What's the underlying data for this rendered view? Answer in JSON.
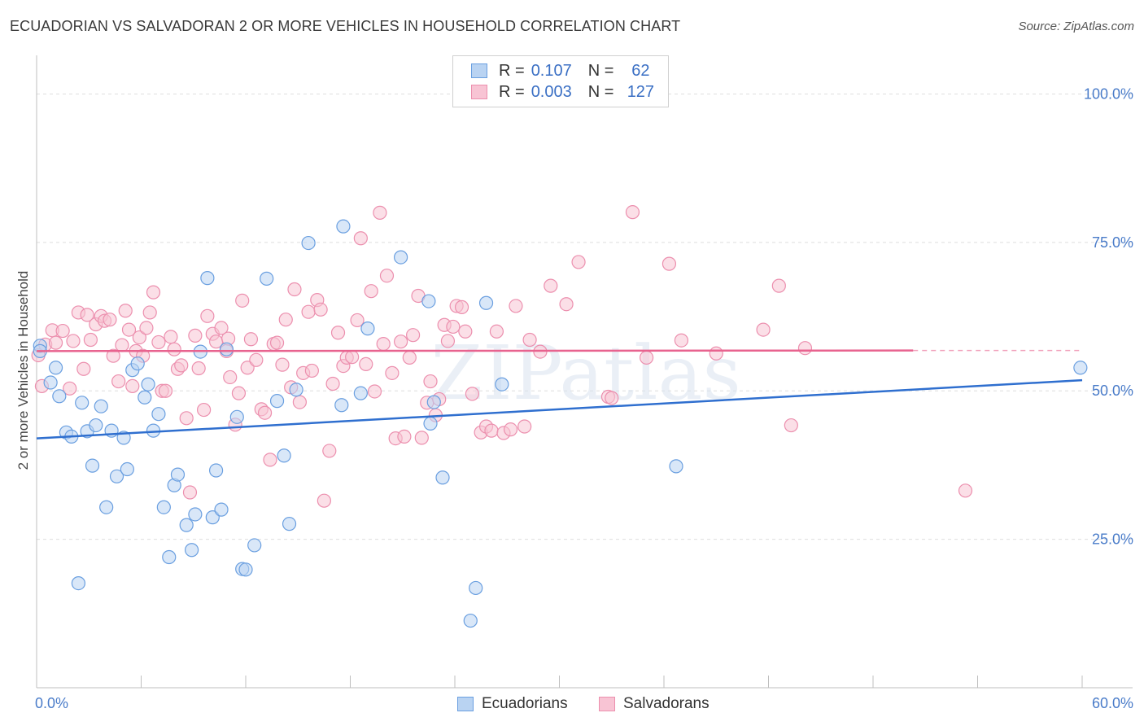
{
  "title": "ECUADORIAN VS SALVADORAN 2 OR MORE VEHICLES IN HOUSEHOLD CORRELATION CHART",
  "source": "Source: ZipAtlas.com",
  "watermark": "ZIPatlas",
  "legend": {
    "rows": [
      {
        "r_label": "R =",
        "r_value": "0.107",
        "n_label": "N =",
        "n_value": "62"
      },
      {
        "r_label": "R =",
        "r_value": "0.003",
        "n_label": "N =",
        "n_value": "127"
      }
    ]
  },
  "bottom_legend": {
    "series1": "Ecuadorians",
    "series2": "Salvadorans"
  },
  "colors": {
    "ecuadorian_fill": "#b9d3f2",
    "ecuadorian_stroke": "#6a9fe0",
    "ecuadorian_line": "#2f6fcf",
    "salvadoran_fill": "#f8c4d4",
    "salvadoran_stroke": "#ec8fae",
    "salvadoran_line": "#e8638f",
    "tick": "#4a7cc9",
    "grid": "#dedede"
  },
  "chart_data": {
    "type": "scatter",
    "title": "ECUADORIAN VS SALVADORAN 2 OR MORE VEHICLES IN HOUSEHOLD CORRELATION CHART",
    "xlabel": "",
    "ylabel": "2 or more Vehicles in Household",
    "xlim": [
      0,
      60
    ],
    "ylim": [
      0,
      105
    ],
    "x_tick_labels": [
      "0.0%",
      "60.0%"
    ],
    "y_ticks": [
      25,
      50,
      75,
      100
    ],
    "y_tick_labels": [
      "25.0%",
      "50.0%",
      "75.0%",
      "100.0%"
    ],
    "series": [
      {
        "name": "Ecuadorians",
        "trend": {
          "x": [
            0,
            60
          ],
          "y": [
            42.0,
            51.8
          ]
        },
        "points": [
          [
            0.2,
            57.6
          ],
          [
            0.2,
            56.7
          ],
          [
            0.8,
            51.4
          ],
          [
            1.1,
            53.9
          ],
          [
            1.3,
            49.1
          ],
          [
            1.7,
            43.0
          ],
          [
            2.0,
            42.3
          ],
          [
            2.4,
            17.6
          ],
          [
            2.6,
            48.0
          ],
          [
            2.9,
            43.2
          ],
          [
            3.2,
            37.4
          ],
          [
            3.4,
            44.2
          ],
          [
            3.7,
            47.4
          ],
          [
            4.0,
            30.4
          ],
          [
            4.3,
            43.3
          ],
          [
            4.6,
            35.6
          ],
          [
            5.0,
            42.1
          ],
          [
            5.2,
            36.8
          ],
          [
            5.5,
            53.5
          ],
          [
            5.8,
            54.6
          ],
          [
            6.2,
            48.9
          ],
          [
            6.4,
            51.1
          ],
          [
            6.7,
            43.3
          ],
          [
            7.0,
            46.1
          ],
          [
            7.3,
            30.4
          ],
          [
            7.6,
            22.0
          ],
          [
            7.9,
            34.1
          ],
          [
            8.1,
            35.9
          ],
          [
            8.6,
            27.4
          ],
          [
            8.9,
            23.2
          ],
          [
            9.1,
            29.2
          ],
          [
            9.4,
            56.6
          ],
          [
            9.8,
            69.0
          ],
          [
            10.1,
            28.7
          ],
          [
            10.3,
            36.6
          ],
          [
            10.6,
            30.0
          ],
          [
            10.9,
            57.0
          ],
          [
            11.5,
            45.6
          ],
          [
            11.8,
            20.0
          ],
          [
            12.0,
            19.9
          ],
          [
            12.5,
            24.0
          ],
          [
            13.2,
            68.9
          ],
          [
            13.8,
            48.3
          ],
          [
            14.2,
            39.1
          ],
          [
            14.5,
            27.6
          ],
          [
            14.9,
            50.2
          ],
          [
            15.6,
            74.9
          ],
          [
            17.5,
            47.6
          ],
          [
            17.6,
            77.7
          ],
          [
            18.6,
            49.6
          ],
          [
            19.0,
            60.5
          ],
          [
            20.9,
            72.5
          ],
          [
            22.5,
            65.1
          ],
          [
            22.6,
            44.5
          ],
          [
            22.8,
            48.1
          ],
          [
            23.3,
            35.4
          ],
          [
            25.2,
            16.8
          ],
          [
            24.9,
            11.3
          ],
          [
            25.8,
            64.8
          ],
          [
            26.7,
            51.1
          ],
          [
            36.7,
            37.3
          ],
          [
            59.9,
            53.9
          ]
        ]
      },
      {
        "name": "Salvadorans",
        "trend": {
          "x": [
            0,
            50.3
          ],
          "y": [
            56.7,
            56.8
          ],
          "dashed_to_x": 60
        },
        "points": [
          [
            0.1,
            56.0
          ],
          [
            0.3,
            50.8
          ],
          [
            0.5,
            57.8
          ],
          [
            0.9,
            60.2
          ],
          [
            1.1,
            58.1
          ],
          [
            1.5,
            60.1
          ],
          [
            1.9,
            50.4
          ],
          [
            2.1,
            58.4
          ],
          [
            2.4,
            63.2
          ],
          [
            2.7,
            53.7
          ],
          [
            2.9,
            62.8
          ],
          [
            3.1,
            58.6
          ],
          [
            3.4,
            61.2
          ],
          [
            3.7,
            62.6
          ],
          [
            3.9,
            61.8
          ],
          [
            4.2,
            62.0
          ],
          [
            4.4,
            55.9
          ],
          [
            4.7,
            51.6
          ],
          [
            4.9,
            57.7
          ],
          [
            5.1,
            63.5
          ],
          [
            5.3,
            60.3
          ],
          [
            5.5,
            50.8
          ],
          [
            5.7,
            56.7
          ],
          [
            5.9,
            59.0
          ],
          [
            6.1,
            55.9
          ],
          [
            6.3,
            60.6
          ],
          [
            6.5,
            63.2
          ],
          [
            6.7,
            66.6
          ],
          [
            7.0,
            58.2
          ],
          [
            7.2,
            50.0
          ],
          [
            7.4,
            50.0
          ],
          [
            7.7,
            59.1
          ],
          [
            7.9,
            57.0
          ],
          [
            8.1,
            53.7
          ],
          [
            8.3,
            54.3
          ],
          [
            8.6,
            45.4
          ],
          [
            8.8,
            32.9
          ],
          [
            9.1,
            59.3
          ],
          [
            9.3,
            53.8
          ],
          [
            9.6,
            46.8
          ],
          [
            9.8,
            62.6
          ],
          [
            10.1,
            59.6
          ],
          [
            10.3,
            58.3
          ],
          [
            10.6,
            60.6
          ],
          [
            10.9,
            56.7
          ],
          [
            11.1,
            52.3
          ],
          [
            11.4,
            44.3
          ],
          [
            11.6,
            49.6
          ],
          [
            11.8,
            65.2
          ],
          [
            12.1,
            53.9
          ],
          [
            12.3,
            58.7
          ],
          [
            12.6,
            55.2
          ],
          [
            12.9,
            46.9
          ],
          [
            13.1,
            46.3
          ],
          [
            13.4,
            38.4
          ],
          [
            13.6,
            57.9
          ],
          [
            13.8,
            58.1
          ],
          [
            14.1,
            54.4
          ],
          [
            14.3,
            62.0
          ],
          [
            14.6,
            50.6
          ],
          [
            14.8,
            67.1
          ],
          [
            15.1,
            48.1
          ],
          [
            15.3,
            53.0
          ],
          [
            15.6,
            63.3
          ],
          [
            15.8,
            53.4
          ],
          [
            16.1,
            65.3
          ],
          [
            16.3,
            63.7
          ],
          [
            16.5,
            31.5
          ],
          [
            16.8,
            39.9
          ],
          [
            17.0,
            51.2
          ],
          [
            17.3,
            59.8
          ],
          [
            17.6,
            54.2
          ],
          [
            17.8,
            55.6
          ],
          [
            18.1,
            55.7
          ],
          [
            18.4,
            61.9
          ],
          [
            18.6,
            75.7
          ],
          [
            18.9,
            54.5
          ],
          [
            19.2,
            66.8
          ],
          [
            19.4,
            49.9
          ],
          [
            19.7,
            80.0
          ],
          [
            19.9,
            57.9
          ],
          [
            20.1,
            69.4
          ],
          [
            20.4,
            53.0
          ],
          [
            20.6,
            42.0
          ],
          [
            20.9,
            58.3
          ],
          [
            21.1,
            42.3
          ],
          [
            21.4,
            55.6
          ],
          [
            21.6,
            59.4
          ],
          [
            21.9,
            66.0
          ],
          [
            22.1,
            42.1
          ],
          [
            22.4,
            48.0
          ],
          [
            22.6,
            51.6
          ],
          [
            22.9,
            45.9
          ],
          [
            23.1,
            48.6
          ],
          [
            23.4,
            61.1
          ],
          [
            23.6,
            58.4
          ],
          [
            23.9,
            60.8
          ],
          [
            24.1,
            64.3
          ],
          [
            24.4,
            64.1
          ],
          [
            24.6,
            60.0
          ],
          [
            25.0,
            49.5
          ],
          [
            25.5,
            43.0
          ],
          [
            25.8,
            44.0
          ],
          [
            26.1,
            43.3
          ],
          [
            26.4,
            60.0
          ],
          [
            26.8,
            42.9
          ],
          [
            27.2,
            43.5
          ],
          [
            27.5,
            64.3
          ],
          [
            28.0,
            44.0
          ],
          [
            28.3,
            58.6
          ],
          [
            28.9,
            56.6
          ],
          [
            29.5,
            67.7
          ],
          [
            30.4,
            64.6
          ],
          [
            31.1,
            71.7
          ],
          [
            32.8,
            49.0
          ],
          [
            34.2,
            80.1
          ],
          [
            35.0,
            55.6
          ],
          [
            36.3,
            71.4
          ],
          [
            37.0,
            58.5
          ],
          [
            39.0,
            56.3
          ],
          [
            41.7,
            60.3
          ],
          [
            42.6,
            67.7
          ],
          [
            43.3,
            44.2
          ],
          [
            44.1,
            57.2
          ],
          [
            53.3,
            33.2
          ],
          [
            33.0,
            48.8
          ],
          [
            11.0,
            58.8
          ]
        ]
      }
    ]
  }
}
